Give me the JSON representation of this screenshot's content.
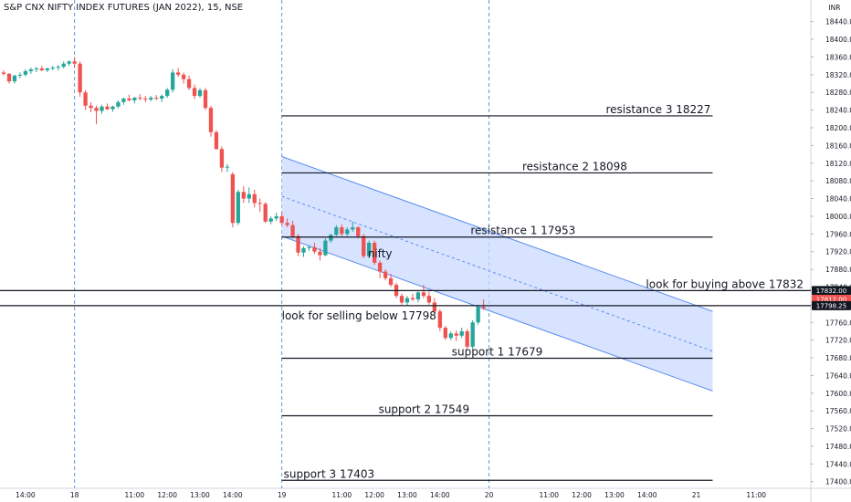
{
  "header": {
    "title": "S&P CNX NIFTY INDEX FUTURES (JAN 2022), 15, NSE"
  },
  "colors": {
    "up": "#26a69a",
    "down": "#ef5350",
    "channel_fill": "#c9d9ff",
    "channel_line": "#5b8def",
    "level_line": "#131722",
    "session_line": "#5b9bd5"
  },
  "chart_data": {
    "type": "candlestick",
    "y_axis": {
      "unit_label": "INR",
      "range": [
        17385,
        18460
      ],
      "ticks": [
        18440,
        18400,
        18360,
        18320,
        18280,
        18240,
        18200,
        18160,
        18120,
        18080,
        18040,
        18000,
        17960,
        17920,
        17880,
        17840,
        17800,
        17760,
        17720,
        17680,
        17640,
        17600,
        17560,
        17520,
        17480,
        17440,
        17400
      ],
      "tick_labels": [
        "18440.00",
        "18400.00",
        "18360.00",
        "18320.00",
        "18280.00",
        "18240.00",
        "18200.00",
        "18160.00",
        "18120.00",
        "18080.00",
        "18040.00",
        "18000.00",
        "17960.00",
        "17920.00",
        "17880.00",
        "17840.00",
        "17800.00",
        "17760.00",
        "17720.00",
        "17680.00",
        "17640.00",
        "17600.00",
        "17560.00",
        "17520.00",
        "17480.00",
        "17440.00",
        "17400.00"
      ]
    },
    "x_axis": {
      "range": [
        0,
        147
      ],
      "ticks": [
        {
          "i": 4,
          "label": "14:00"
        },
        {
          "i": 13,
          "label": "18"
        },
        {
          "i": 24,
          "label": "11:00"
        },
        {
          "i": 30,
          "label": "12:00"
        },
        {
          "i": 36,
          "label": "13:00"
        },
        {
          "i": 42,
          "label": "14:00"
        },
        {
          "i": 51,
          "label": "19"
        },
        {
          "i": 62,
          "label": "11:00"
        },
        {
          "i": 68,
          "label": "12:00"
        },
        {
          "i": 74,
          "label": "13:00"
        },
        {
          "i": 80,
          "label": "14:00"
        },
        {
          "i": 89,
          "label": "20"
        },
        {
          "i": 100,
          "label": "11:00"
        },
        {
          "i": 106,
          "label": "12:00"
        },
        {
          "i": 112,
          "label": "13:00"
        },
        {
          "i": 118,
          "label": "14:00"
        },
        {
          "i": 127,
          "label": "21"
        },
        {
          "i": 138,
          "label": "11:00"
        }
      ],
      "session_breaks": [
        13,
        51,
        89
      ]
    },
    "candles": [
      [
        18325,
        18330,
        18318,
        18322
      ],
      [
        18322,
        18324,
        18300,
        18305
      ],
      [
        18305,
        18320,
        18300,
        18318
      ],
      [
        18318,
        18325,
        18312,
        18320
      ],
      [
        18320,
        18332,
        18316,
        18328
      ],
      [
        18328,
        18336,
        18322,
        18332
      ],
      [
        18332,
        18338,
        18326,
        18334
      ],
      [
        18334,
        18340,
        18328,
        18330
      ],
      [
        18330,
        18336,
        18326,
        18334
      ],
      [
        18334,
        18340,
        18330,
        18336
      ],
      [
        18336,
        18342,
        18330,
        18338
      ],
      [
        18338,
        18350,
        18334,
        18345
      ],
      [
        18345,
        18352,
        18340,
        18350
      ],
      [
        18350,
        18360,
        18335,
        18345
      ],
      [
        18345,
        18350,
        18270,
        18280
      ],
      [
        18280,
        18285,
        18240,
        18250
      ],
      [
        18250,
        18258,
        18235,
        18245
      ],
      [
        18245,
        18250,
        18208,
        18238
      ],
      [
        18238,
        18252,
        18232,
        18248
      ],
      [
        18248,
        18255,
        18240,
        18242
      ],
      [
        18242,
        18250,
        18236,
        18248
      ],
      [
        18248,
        18262,
        18244,
        18258
      ],
      [
        18258,
        18268,
        18252,
        18266
      ],
      [
        18266,
        18275,
        18260,
        18262
      ],
      [
        18262,
        18270,
        18255,
        18268
      ],
      [
        18268,
        18276,
        18262,
        18266
      ],
      [
        18266,
        18272,
        18258,
        18264
      ],
      [
        18264,
        18272,
        18260,
        18268
      ],
      [
        18268,
        18274,
        18262,
        18266
      ],
      [
        18266,
        18275,
        18258,
        18272
      ],
      [
        18272,
        18290,
        18268,
        18286
      ],
      [
        18286,
        18332,
        18280,
        18325
      ],
      [
        18325,
        18335,
        18315,
        18320
      ],
      [
        18320,
        18325,
        18300,
        18310
      ],
      [
        18310,
        18318,
        18285,
        18290
      ],
      [
        18290,
        18298,
        18265,
        18272
      ],
      [
        18272,
        18290,
        18268,
        18285
      ],
      [
        18285,
        18290,
        18240,
        18245
      ],
      [
        18245,
        18250,
        18180,
        18190
      ],
      [
        18190,
        18195,
        18150,
        18152
      ],
      [
        18152,
        18158,
        18100,
        18110
      ],
      [
        18110,
        18118,
        18100,
        18112
      ],
      [
        18095,
        18100,
        17975,
        17985
      ],
      [
        17985,
        18060,
        17980,
        18055
      ],
      [
        18055,
        18068,
        18030,
        18040
      ],
      [
        18040,
        18065,
        18030,
        18050
      ],
      [
        18050,
        18060,
        18020,
        18030
      ],
      [
        18030,
        18040,
        18010,
        18028
      ],
      [
        18028,
        18032,
        17985,
        17988
      ],
      [
        17988,
        18000,
        17982,
        17995
      ],
      [
        17995,
        18008,
        17990,
        18000
      ],
      [
        18000,
        18010,
        17980,
        17985
      ],
      [
        17985,
        17995,
        17975,
        17980
      ],
      [
        17980,
        17990,
        17950,
        17955
      ],
      [
        17955,
        17960,
        17910,
        17918
      ],
      [
        17918,
        17932,
        17908,
        17928
      ],
      [
        17928,
        17935,
        17922,
        17930
      ],
      [
        17930,
        17940,
        17915,
        17920
      ],
      [
        17920,
        17928,
        17900,
        17912
      ],
      [
        17912,
        17950,
        17910,
        17945
      ],
      [
        17945,
        17960,
        17940,
        17958
      ],
      [
        17958,
        17980,
        17955,
        17975
      ],
      [
        17975,
        17982,
        17955,
        17960
      ],
      [
        17960,
        17975,
        17955,
        17970
      ],
      [
        17970,
        17988,
        17965,
        17975
      ],
      [
        17975,
        17978,
        17950,
        17955
      ],
      [
        17955,
        17960,
        17905,
        17910
      ],
      [
        17910,
        17945,
        17905,
        17940
      ],
      [
        17940,
        17945,
        17890,
        17895
      ],
      [
        17895,
        17900,
        17860,
        17875
      ],
      [
        17875,
        17880,
        17855,
        17860
      ],
      [
        17860,
        17870,
        17840,
        17845
      ],
      [
        17845,
        17850,
        17815,
        17820
      ],
      [
        17820,
        17825,
        17800,
        17805
      ],
      [
        17805,
        17820,
        17798,
        17815
      ],
      [
        17815,
        17825,
        17808,
        17812
      ],
      [
        17812,
        17830,
        17805,
        17828
      ],
      [
        17828,
        17845,
        17815,
        17820
      ],
      [
        17820,
        17830,
        17800,
        17805
      ],
      [
        17805,
        17815,
        17780,
        17785
      ],
      [
        17785,
        17790,
        17740,
        17748
      ],
      [
        17748,
        17752,
        17720,
        17725
      ],
      [
        17725,
        17740,
        17720,
        17735
      ],
      [
        17735,
        17742,
        17718,
        17730
      ],
      [
        17730,
        17748,
        17725,
        17740
      ],
      [
        17740,
        17745,
        17700,
        17705
      ],
      [
        17705,
        17765,
        17700,
        17760
      ],
      [
        17760,
        17800,
        17755,
        17795
      ],
      [
        17795,
        17812,
        17788,
        17792
      ]
    ],
    "channel": {
      "upper": [
        {
          "i": 51,
          "p": 18135
        },
        {
          "i": 130,
          "p": 17785
        }
      ],
      "lower": [
        {
          "i": 51,
          "p": 17955
        },
        {
          "i": 130,
          "p": 17605
        }
      ],
      "mid": [
        {
          "i": 51,
          "p": 18045
        },
        {
          "i": 130,
          "p": 17695
        }
      ]
    },
    "levels": [
      {
        "price": 18227,
        "from_i": 51,
        "to_i": 130,
        "label": "resistance 3 18227",
        "label_at": "right"
      },
      {
        "price": 18098,
        "from_i": 51,
        "to_i": 130,
        "label": "resistance 2 18098",
        "label_at": "middle-right"
      },
      {
        "price": 17953,
        "from_i": 51,
        "to_i": 130,
        "label": "resistance 1 17953",
        "label_at": "middle"
      },
      {
        "price": 17832,
        "from_i": 0,
        "to_i": 147,
        "label": "look for buying above 17832",
        "label_at": "right"
      },
      {
        "price": 17798,
        "from_i": 0,
        "to_i": 147,
        "label": "look for selling below 17798",
        "label_at": "left-below"
      },
      {
        "price": 17679,
        "from_i": 51,
        "to_i": 130,
        "label": "support 1 17679",
        "label_at": "middle"
      },
      {
        "price": 17549,
        "from_i": 51,
        "to_i": 130,
        "label": "support 2 17549",
        "label_at": "middle-left"
      },
      {
        "price": 17403,
        "from_i": 51,
        "to_i": 130,
        "label": "support 3 17403",
        "label_at": "left"
      }
    ],
    "annotations": [
      {
        "text": "nifty",
        "i": 69,
        "p": 17915
      }
    ],
    "price_tags": [
      {
        "price": 17832,
        "text": "17832.00",
        "color": "#131722"
      },
      {
        "price": 17812,
        "text": "17812.00",
        "color": "#ef5350"
      },
      {
        "price": 17798,
        "text": "17798.25",
        "color": "#131722"
      }
    ]
  }
}
